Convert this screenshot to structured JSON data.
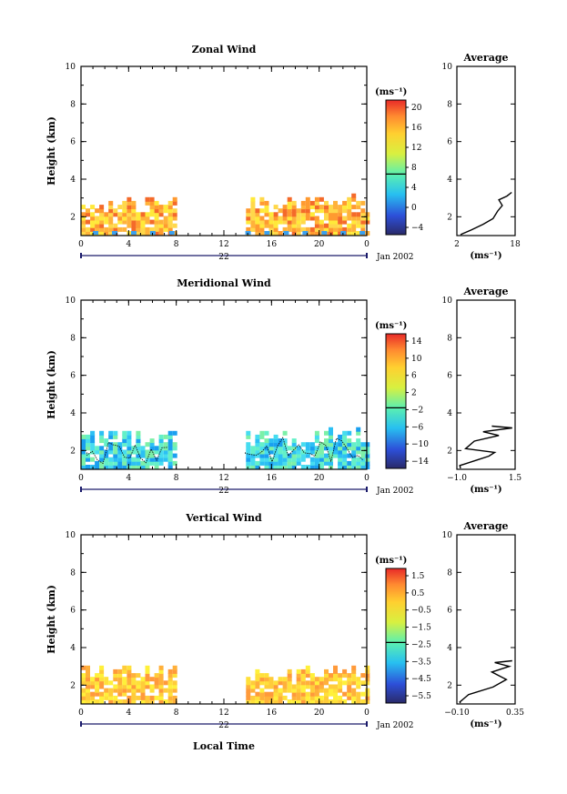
{
  "xlabel": "Local Time",
  "x_ticks": [
    "0",
    "4",
    "8",
    "12",
    "16",
    "20",
    "0"
  ],
  "date_label": "Jan 2002",
  "avg_title": "Average",
  "panels": [
    {
      "title": "Zonal Wind",
      "ylabel": "Height (km)",
      "day": "22",
      "units": "(ms⁻¹)",
      "y_ticks": [
        "2",
        "4",
        "6",
        "8",
        "10"
      ],
      "colorbar_ticks": [
        "20",
        "16",
        "12",
        "8",
        "4",
        "0",
        "−4"
      ],
      "avg_x_ticks": [
        "2",
        "18"
      ],
      "avg_xlabel": "(ms⁻¹)",
      "colors": [
        "#ffd84a",
        "#ffe93a",
        "#ffb23a",
        "#ff9a30",
        "#f46a2a"
      ]
    },
    {
      "title": "Meridional Wind",
      "ylabel": "Height (km)",
      "day": "22",
      "units": "(ms⁻¹)",
      "y_ticks": [
        "2",
        "4",
        "6",
        "8",
        "10"
      ],
      "colorbar_ticks": [
        "14",
        "10",
        "6",
        "2",
        "−2",
        "−6",
        "−10",
        "−14"
      ],
      "avg_x_ticks": [
        "−1.0",
        "1.5"
      ],
      "avg_xlabel": "(ms⁻¹)",
      "colors": [
        "#64f0c8",
        "#46dcf0",
        "#2cc0f4",
        "#7cf0a8",
        "#1aa0f0"
      ]
    },
    {
      "title": "Vertical Wind",
      "ylabel": "Height (km)",
      "day": "22",
      "units": "(ms⁻¹)",
      "y_ticks": [
        "2",
        "4",
        "6",
        "8",
        "10"
      ],
      "colorbar_ticks": [
        "1.5",
        "0.5",
        "−0.5",
        "−1.5",
        "−2.5",
        "−3.5",
        "−4.5",
        "−5.5"
      ],
      "avg_x_ticks": [
        "−0.10",
        "0.35"
      ],
      "avg_xlabel": "(ms⁻¹)",
      "colors": [
        "#fff03a",
        "#ffe03a",
        "#ffcc3a",
        "#ffb03a",
        "#ff9a3a"
      ]
    }
  ],
  "chart_data": {
    "type": "heatmap",
    "x_range_hours": [
      0,
      24
    ],
    "y_range_km": [
      1,
      10
    ],
    "data_gap_hours": [
      7.7,
      13.5
    ],
    "data_height_km": [
      1,
      3.2
    ]
  }
}
